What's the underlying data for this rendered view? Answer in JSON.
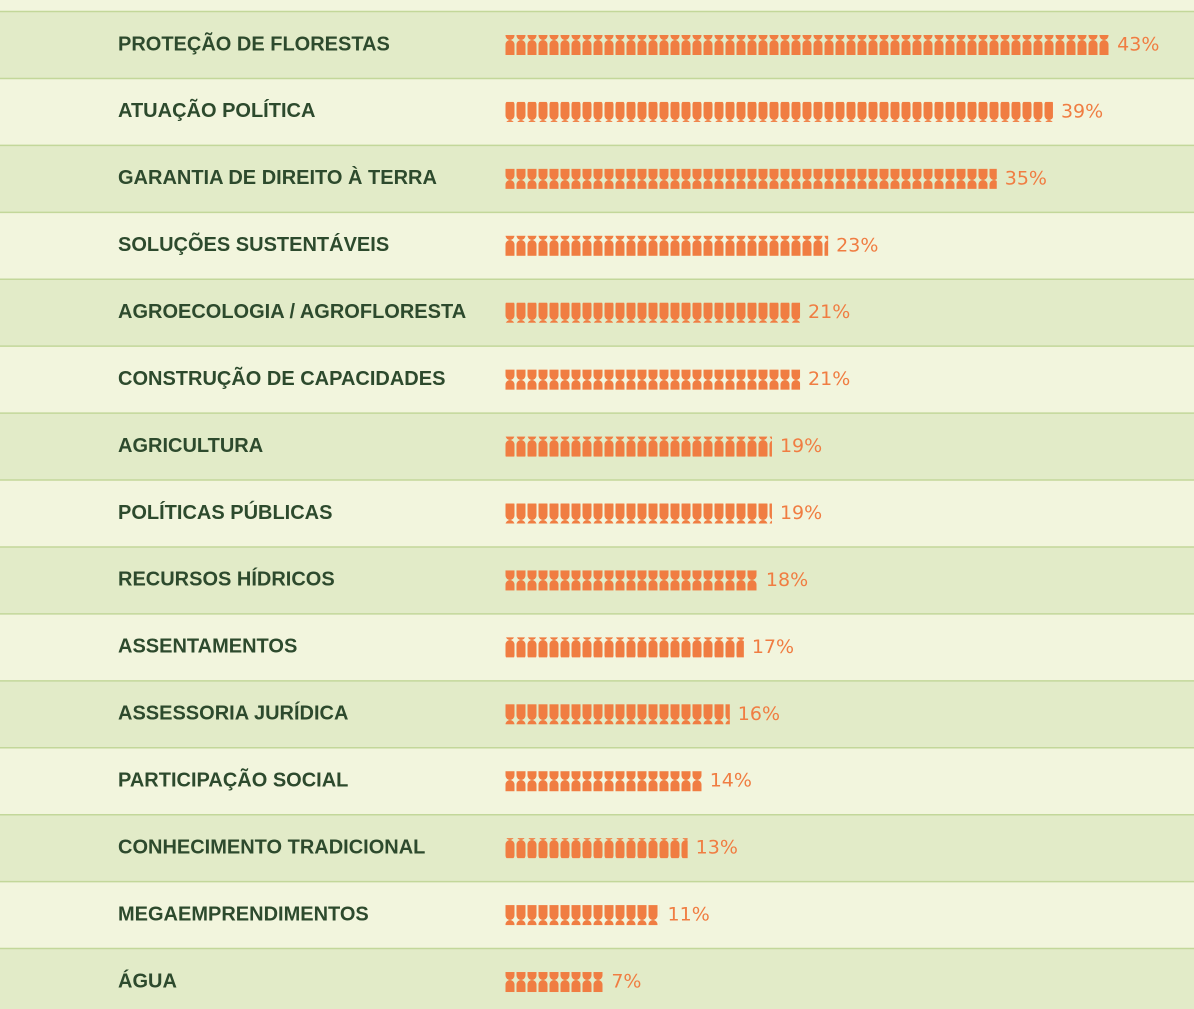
{
  "chart_data": {
    "type": "bar",
    "orientation": "horizontal",
    "categories": [
      "PROTEÇÃO DE FLORESTAS",
      "ATUAÇÃO POLÍTICA",
      "GARANTIA DE DIREITO À TERRA",
      "SOLUÇÕES SUSTENTÁVEIS",
      "AGROECOLOGIA / AGROFLORESTA",
      "CONSTRUÇÃO DE CAPACIDADES",
      "AGRICULTURA",
      "POLÍTICAS PÚBLICAS",
      "RECURSOS HÍDRICOS",
      "ASSENTAMENTOS",
      "ASSESSORIA JURÍDICA",
      "PARTICIPAÇÃO SOCIAL",
      "CONHECIMENTO TRADICIONAL",
      "MEGAEMPRENDIMENTOS",
      "ÁGUA"
    ],
    "values": [
      43,
      39,
      35,
      23,
      21,
      21,
      19,
      19,
      18,
      17,
      16,
      14,
      13,
      11,
      7
    ],
    "value_labels": [
      "43%",
      "39%",
      "35%",
      "23%",
      "21%",
      "21%",
      "19%",
      "19%",
      "18%",
      "17%",
      "16%",
      "14%",
      "13%",
      "11%",
      "7%"
    ],
    "color": "#f07d42"
  }
}
